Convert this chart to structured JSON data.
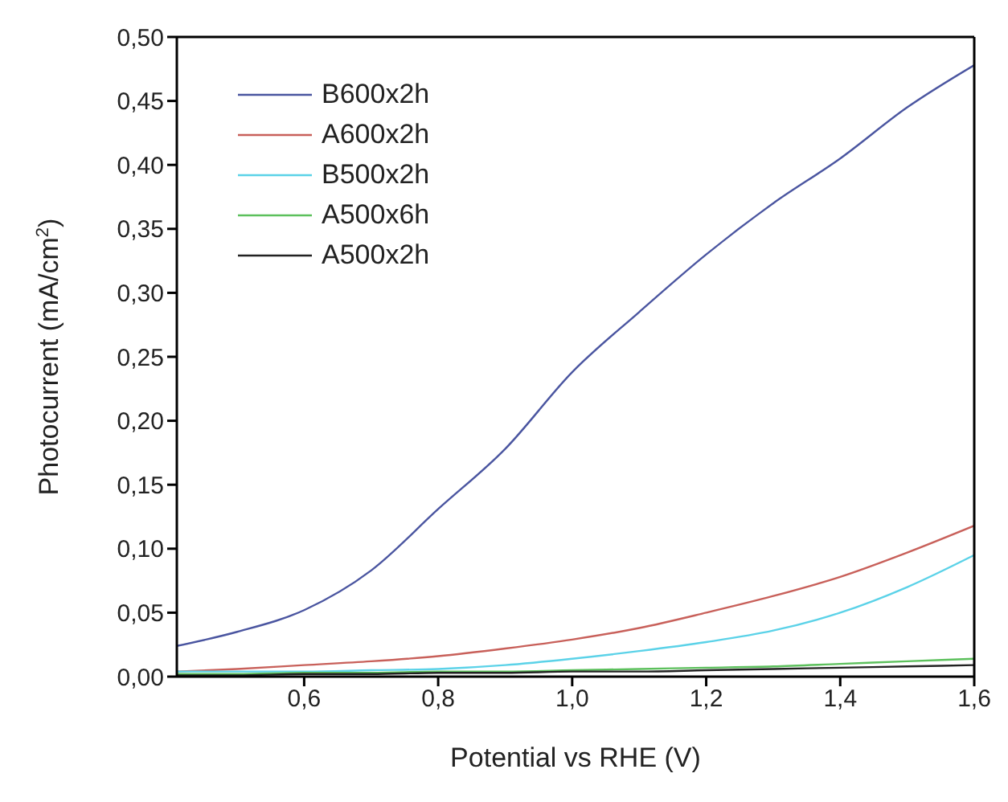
{
  "chart_data": {
    "type": "line",
    "xlabel": "Potential vs RHE (V)",
    "ylabel": "Photocurrent (mA/cm$^{2}$)",
    "xlim": [
      0.41,
      1.6
    ],
    "xticks": [
      {
        "value": 0.6,
        "label": "0,6"
      },
      {
        "value": 0.8,
        "label": "0,8"
      },
      {
        "value": 1.0,
        "label": "1,0"
      },
      {
        "value": 1.2,
        "label": "1,2"
      },
      {
        "value": 1.4,
        "label": "1,4"
      },
      {
        "value": 1.6,
        "label": "1,6"
      }
    ],
    "ylim": [
      0,
      0.5
    ],
    "yticks": [
      {
        "value": 0,
        "label": "0,00"
      },
      {
        "value": 0.05,
        "label": "0,05"
      },
      {
        "value": 0.1,
        "label": "0,10"
      },
      {
        "value": 0.15,
        "label": "0,15"
      },
      {
        "value": 0.2,
        "label": "0,20"
      },
      {
        "value": 0.25,
        "label": "0,25"
      },
      {
        "value": 0.3,
        "label": "0,30"
      },
      {
        "value": 0.35,
        "label": "0,35"
      },
      {
        "value": 0.4,
        "label": "0,40"
      },
      {
        "value": 0.45,
        "label": "0,45"
      },
      {
        "value": 0.5,
        "label": "0,50"
      }
    ],
    "x": [
      0.41,
      0.5,
      0.6,
      0.7,
      0.8,
      0.9,
      1.0,
      1.1,
      1.2,
      1.3,
      1.4,
      1.5,
      1.6
    ],
    "grid": false,
    "legend": "top left",
    "marker": "none",
    "line_style": "solid",
    "series": [
      {
        "name": "B600x2h",
        "color": "#4a55a0",
        "values": [
          0.024,
          0.035,
          0.052,
          0.083,
          0.131,
          0.178,
          0.238,
          0.285,
          0.33,
          0.37,
          0.405,
          0.445,
          0.478
        ]
      },
      {
        "name": "A600x2h",
        "color": "#c8605a",
        "values": [
          0.004,
          0.006,
          0.009,
          0.012,
          0.016,
          0.022,
          0.029,
          0.038,
          0.05,
          0.063,
          0.078,
          0.097,
          0.118
        ]
      },
      {
        "name": "B500x2h",
        "color": "#5bd2e8",
        "values": [
          0.004,
          0.004,
          0.004,
          0.005,
          0.006,
          0.009,
          0.014,
          0.02,
          0.027,
          0.036,
          0.05,
          0.07,
          0.095
        ]
      },
      {
        "name": "A500x6h",
        "color": "#5cc05c",
        "values": [
          0.002,
          0.002,
          0.003,
          0.003,
          0.004,
          0.004,
          0.005,
          0.006,
          0.007,
          0.008,
          0.01,
          0.012,
          0.014
        ]
      },
      {
        "name": "A500x2h",
        "color": "#222222",
        "values": [
          0.001,
          0.001,
          0.002,
          0.002,
          0.003,
          0.003,
          0.004,
          0.004,
          0.005,
          0.006,
          0.007,
          0.008,
          0.009
        ]
      }
    ]
  }
}
